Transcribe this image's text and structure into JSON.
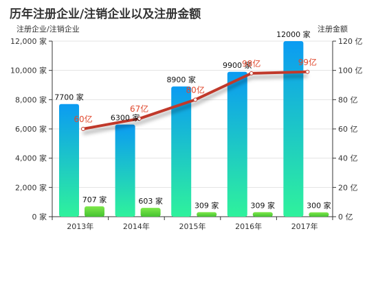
{
  "chart_data": {
    "type": "bar",
    "title": "历年注册企业/注销企业以及注册金额",
    "y_left_label": "注册企业/注销企业",
    "y_right_label": "注册金额",
    "categories": [
      "2013年",
      "2014年",
      "2015年",
      "2016年",
      "2017年"
    ],
    "y_left_range": [
      0,
      12000
    ],
    "y_left_ticks": [
      "0 家",
      "2,000 家",
      "4,000 家",
      "6,000 家",
      "8,000 家",
      "10,000 家",
      "12,000 家"
    ],
    "y_right_range": [
      0,
      120
    ],
    "y_right_ticks": [
      "0 亿",
      "20 亿",
      "40 亿",
      "60 亿",
      "80 亿",
      "100 亿",
      "120 亿"
    ],
    "series": [
      {
        "type": "bar",
        "axis": "left",
        "values": [
          7700,
          6300,
          8900,
          9900,
          12000
        ],
        "labels": [
          "7700 家",
          "6300 家",
          "8900 家",
          "9900 家",
          "12000 家"
        ],
        "color": "#0b9bf2"
      },
      {
        "type": "bar",
        "axis": "left",
        "values": [
          707,
          603,
          309,
          309,
          300
        ],
        "labels": [
          "707 家",
          "603 家",
          "309 家",
          "309 家",
          "300 家"
        ],
        "color": "#5fd63c"
      },
      {
        "type": "line",
        "axis": "right",
        "values": [
          60,
          67,
          80,
          98,
          99
        ],
        "labels": [
          "60亿",
          "67亿",
          "80亿",
          "98亿",
          "99亿"
        ],
        "color": "#c0392b"
      }
    ],
    "grid": true
  }
}
